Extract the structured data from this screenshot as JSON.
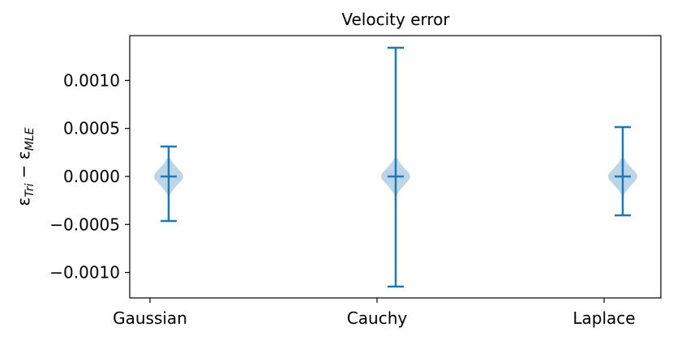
{
  "chart_data": {
    "type": "violin",
    "title": "Velocity error",
    "ylabel": [
      "ε",
      "Tri",
      " − ",
      "ε",
      "MLE"
    ],
    "categories": [
      "Gaussian",
      "Cauchy",
      "Laplace"
    ],
    "max": [
      0.000312,
      0.00134,
      0.000514
    ],
    "median": [
      0,
      0,
      0
    ],
    "min": [
      -0.000464,
      -0.001147,
      -0.000405
    ],
    "color": "#1f77b4",
    "ylim": [
      -0.001265,
      0.001467
    ],
    "yticks": [
      {
        "value": -0.001,
        "label": "−0.0010"
      },
      {
        "value": -0.0005,
        "label": "−0.0005"
      },
      {
        "value": 0,
        "label": "0.0000"
      },
      {
        "value": 0.0005,
        "label": "0.0005"
      },
      {
        "value": 0.001,
        "label": "0.0010"
      }
    ]
  }
}
